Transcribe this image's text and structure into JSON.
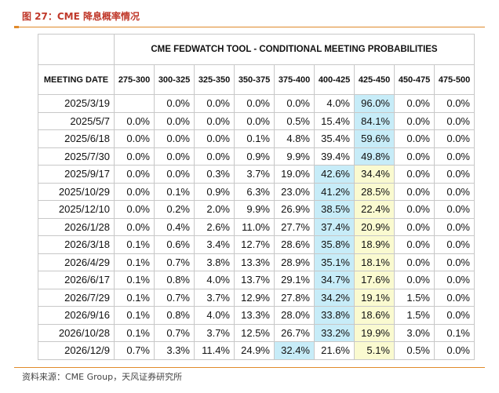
{
  "figure_title": "图 27：CME 降息概率情况",
  "source_text": "资料来源：CME Group，天风证券研究所",
  "table_caption": "CME FEDWATCH TOOL - CONDITIONAL MEETING PROBABILITIES",
  "highlight_colors": {
    "mode": "#c7ecf8",
    "current_range": "#fafad0"
  },
  "chart_data": {
    "type": "table",
    "title": "CME FEDWATCH TOOL - CONDITIONAL MEETING PROBABILITIES",
    "row_header": "MEETING DATE",
    "columns": [
      "275-300",
      "300-325",
      "325-350",
      "350-375",
      "375-400",
      "400-425",
      "425-450",
      "450-475",
      "475-500"
    ],
    "rows": [
      {
        "date": "2025/3/19",
        "values": [
          "",
          "0.0%",
          "0.0%",
          "0.0%",
          "0.0%",
          "4.0%",
          "96.0%",
          "0.0%",
          "0.0%"
        ]
      },
      {
        "date": "2025/5/7",
        "values": [
          "0.0%",
          "0.0%",
          "0.0%",
          "0.0%",
          "0.5%",
          "15.4%",
          "84.1%",
          "0.0%",
          "0.0%"
        ]
      },
      {
        "date": "2025/6/18",
        "values": [
          "0.0%",
          "0.0%",
          "0.0%",
          "0.1%",
          "4.8%",
          "35.4%",
          "59.6%",
          "0.0%",
          "0.0%"
        ]
      },
      {
        "date": "2025/7/30",
        "values": [
          "0.0%",
          "0.0%",
          "0.0%",
          "0.9%",
          "9.9%",
          "39.4%",
          "49.8%",
          "0.0%",
          "0.0%"
        ]
      },
      {
        "date": "2025/9/17",
        "values": [
          "0.0%",
          "0.0%",
          "0.3%",
          "3.7%",
          "19.0%",
          "42.6%",
          "34.4%",
          "0.0%",
          "0.0%"
        ]
      },
      {
        "date": "2025/10/29",
        "values": [
          "0.0%",
          "0.1%",
          "0.9%",
          "6.3%",
          "23.0%",
          "41.2%",
          "28.5%",
          "0.0%",
          "0.0%"
        ]
      },
      {
        "date": "2025/12/10",
        "values": [
          "0.0%",
          "0.2%",
          "2.0%",
          "9.9%",
          "26.9%",
          "38.5%",
          "22.4%",
          "0.0%",
          "0.0%"
        ]
      },
      {
        "date": "2026/1/28",
        "values": [
          "0.0%",
          "0.4%",
          "2.6%",
          "11.0%",
          "27.7%",
          "37.4%",
          "20.9%",
          "0.0%",
          "0.0%"
        ]
      },
      {
        "date": "2026/3/18",
        "values": [
          "0.1%",
          "0.6%",
          "3.4%",
          "12.7%",
          "28.6%",
          "35.8%",
          "18.9%",
          "0.0%",
          "0.0%"
        ]
      },
      {
        "date": "2026/4/29",
        "values": [
          "0.1%",
          "0.7%",
          "3.8%",
          "13.3%",
          "28.9%",
          "35.1%",
          "18.1%",
          "0.0%",
          "0.0%"
        ]
      },
      {
        "date": "2026/6/17",
        "values": [
          "0.1%",
          "0.8%",
          "4.0%",
          "13.7%",
          "29.1%",
          "34.7%",
          "17.6%",
          "0.0%",
          "0.0%"
        ]
      },
      {
        "date": "2026/7/29",
        "values": [
          "0.1%",
          "0.7%",
          "3.7%",
          "12.9%",
          "27.8%",
          "34.2%",
          "19.1%",
          "1.5%",
          "0.0%"
        ]
      },
      {
        "date": "2026/9/16",
        "values": [
          "0.1%",
          "0.8%",
          "4.0%",
          "13.3%",
          "28.0%",
          "33.8%",
          "18.6%",
          "1.5%",
          "0.0%"
        ]
      },
      {
        "date": "2026/10/28",
        "values": [
          "0.1%",
          "0.7%",
          "3.7%",
          "12.5%",
          "26.7%",
          "33.2%",
          "19.9%",
          "3.0%",
          "0.1%"
        ]
      },
      {
        "date": "2026/12/9",
        "values": [
          "0.7%",
          "3.3%",
          "11.4%",
          "24.9%",
          "32.4%",
          "21.6%",
          "5.1%",
          "0.5%",
          "0.0%"
        ]
      }
    ],
    "highlight": {
      "current_range_column": "425-450",
      "mode_cells": [
        {
          "date": "2025/3/19",
          "column": "425-450"
        },
        {
          "date": "2025/5/7",
          "column": "425-450"
        },
        {
          "date": "2025/6/18",
          "column": "425-450"
        },
        {
          "date": "2025/7/30",
          "column": "425-450"
        },
        {
          "date": "2025/9/17",
          "column": "400-425"
        },
        {
          "date": "2025/10/29",
          "column": "400-425"
        },
        {
          "date": "2025/12/10",
          "column": "400-425"
        },
        {
          "date": "2026/1/28",
          "column": "400-425"
        },
        {
          "date": "2026/3/18",
          "column": "400-425"
        },
        {
          "date": "2026/4/29",
          "column": "400-425"
        },
        {
          "date": "2026/6/17",
          "column": "400-425"
        },
        {
          "date": "2026/7/29",
          "column": "400-425"
        },
        {
          "date": "2026/9/16",
          "column": "400-425"
        },
        {
          "date": "2026/10/28",
          "column": "400-425"
        },
        {
          "date": "2026/12/9",
          "column": "375-400"
        }
      ]
    }
  }
}
